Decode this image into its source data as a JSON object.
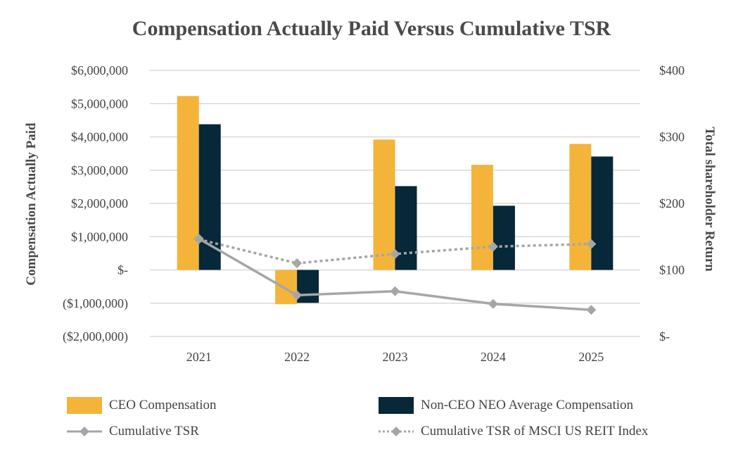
{
  "chart_data": {
    "type": "bar",
    "title": "Compensation Actually Paid Versus Cumulative TSR",
    "categories": [
      "2021",
      "2022",
      "2023",
      "2024",
      "2025"
    ],
    "y_left": {
      "label": "Compensation Actually Paid",
      "ylim": [
        -2000000,
        6000000
      ],
      "ticks": [
        6000000,
        5000000,
        4000000,
        3000000,
        2000000,
        1000000,
        0,
        -1000000,
        -2000000
      ],
      "tick_labels": [
        "$6,000,000",
        "$5,000,000",
        "$4,000,000",
        "$3,000,000",
        "$2,000,000",
        "$1,000,000",
        "$-",
        "($1,000,000)",
        "($2,000,000)"
      ]
    },
    "y_right": {
      "label": "Total shareholder Return",
      "ylim": [
        0,
        400
      ],
      "ticks": [
        400,
        300,
        200,
        100,
        0
      ],
      "tick_labels": [
        "$400",
        "$300",
        "$200",
        "$100",
        "$-"
      ]
    },
    "series": [
      {
        "name": "CEO Compensation",
        "kind": "bar",
        "axis": "left",
        "color": "#F4B43A",
        "values": [
          5230000,
          -1030000,
          3920000,
          3160000,
          3790000
        ]
      },
      {
        "name": "Non-CEO NEO Average Compensation",
        "kind": "bar",
        "axis": "left",
        "color": "#062838",
        "values": [
          4380000,
          -990000,
          2520000,
          1930000,
          3410000
        ]
      },
      {
        "name": "Cumulative TSR",
        "kind": "line",
        "axis": "right",
        "color": "#A6A6A6",
        "style": "solid",
        "values": [
          147,
          62,
          68,
          49,
          40
        ]
      },
      {
        "name": "Cumulative TSR of MSCI US REIT Index",
        "kind": "line",
        "axis": "right",
        "color": "#A6A6A6",
        "style": "dotted",
        "values": [
          146,
          110,
          124,
          135,
          139
        ]
      }
    ],
    "grid": true,
    "legend_position": "bottom"
  }
}
